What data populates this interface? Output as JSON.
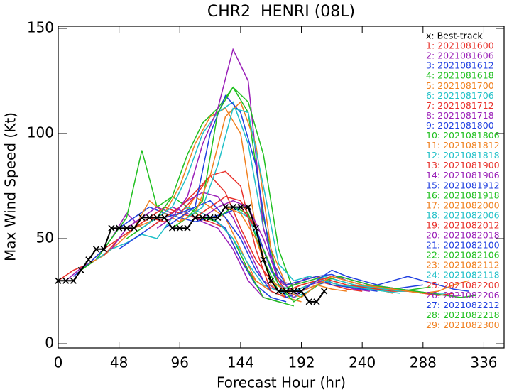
{
  "chart_data": {
    "type": "line",
    "title": "CHR2  HENRI (08L)",
    "x_label": "Forecast Hour (hr)",
    "y_label": "Max Wind Speed (Kt)",
    "xlim": [
      0,
      352
    ],
    "xticks": [
      0,
      48,
      96,
      144,
      192,
      240,
      288,
      336
    ],
    "ylim": [
      -2,
      151
    ],
    "yticks": [
      0,
      50,
      100,
      150
    ],
    "legend": "upper right",
    "series": [
      {
        "name": "x: Best-track",
        "color": "#000000",
        "marker": "x",
        "x": [
          0,
          6,
          12,
          18,
          24,
          30,
          36,
          42,
          48,
          54,
          60,
          66,
          72,
          78,
          84,
          90,
          96,
          102,
          108,
          114,
          120,
          126,
          132,
          138,
          144,
          150,
          156,
          162,
          168,
          174,
          180,
          186,
          192,
          198,
          204,
          210
        ],
        "values": [
          30,
          30,
          30,
          35,
          40,
          45,
          45,
          55,
          55,
          55,
          55,
          60,
          60,
          60,
          60,
          55,
          55,
          55,
          60,
          60,
          60,
          60,
          65,
          65,
          65,
          65,
          55,
          40,
          30,
          25,
          25,
          25,
          25,
          20,
          20,
          25
        ]
      },
      {
        "name": "1: 2021081600",
        "color": "#e8302a",
        "x": [
          0,
          12,
          24,
          36,
          48,
          60,
          72,
          84,
          96,
          108,
          120,
          132,
          144,
          156,
          168
        ],
        "values": [
          30,
          35,
          38,
          45,
          50,
          55,
          60,
          58,
          62,
          60,
          58,
          55,
          40,
          30,
          25
        ]
      },
      {
        "name": "2: 2021081606",
        "color": "#9a1fb8",
        "x": [
          6,
          18,
          30,
          42,
          54,
          66,
          78,
          90,
          102,
          114,
          126,
          138,
          150,
          162,
          174
        ],
        "values": [
          30,
          36,
          40,
          50,
          62,
          55,
          60,
          65,
          62,
          58,
          55,
          45,
          30,
          22,
          20
        ]
      },
      {
        "name": "3: 2021081612",
        "color": "#2040e0",
        "x": [
          12,
          24,
          36,
          48,
          60,
          72,
          84,
          96,
          108,
          120,
          132,
          144,
          156,
          168,
          180
        ],
        "values": [
          32,
          38,
          45,
          55,
          60,
          65,
          62,
          60,
          58,
          60,
          55,
          40,
          28,
          22,
          20
        ]
      },
      {
        "name": "4: 2021081618",
        "color": "#20c020",
        "x": [
          18,
          30,
          42,
          54,
          66,
          78,
          90,
          102,
          114,
          126,
          138,
          150,
          162,
          174,
          186
        ],
        "values": [
          35,
          40,
          50,
          60,
          92,
          65,
          70,
          65,
          60,
          58,
          50,
          35,
          22,
          20,
          18
        ]
      },
      {
        "name": "5: 2021081700",
        "color": "#f08020",
        "x": [
          24,
          36,
          48,
          60,
          72,
          84,
          96,
          108,
          120,
          132,
          144,
          156,
          168,
          180,
          192
        ],
        "values": [
          38,
          42,
          48,
          55,
          68,
          62,
          58,
          70,
          65,
          60,
          45,
          30,
          25,
          22,
          20
        ]
      },
      {
        "name": "6: 2021081706",
        "color": "#20c0c8",
        "x": [
          30,
          42,
          54,
          66,
          78,
          90,
          102,
          114,
          126,
          138,
          150,
          162,
          174,
          186,
          198
        ],
        "values": [
          40,
          45,
          48,
          52,
          50,
          60,
          65,
          62,
          58,
          50,
          38,
          28,
          25,
          22,
          25
        ]
      },
      {
        "name": "7: 2021081712",
        "color": "#e8302a",
        "x": [
          36,
          48,
          60,
          72,
          84,
          96,
          108,
          120,
          132,
          144,
          156,
          168,
          180,
          192,
          204
        ],
        "values": [
          42,
          50,
          55,
          60,
          65,
          62,
          70,
          80,
          72,
          55,
          40,
          30,
          25,
          28,
          30
        ]
      },
      {
        "name": "8: 2021081718",
        "color": "#9a1fb8",
        "x": [
          42,
          54,
          66,
          78,
          90,
          102,
          114,
          126,
          138,
          150,
          162,
          174,
          186,
          198,
          210
        ],
        "values": [
          45,
          55,
          60,
          65,
          62,
          68,
          72,
          70,
          60,
          45,
          30,
          25,
          28,
          30,
          32
        ]
      },
      {
        "name": "9: 2021081800",
        "color": "#2040e0",
        "x": [
          48,
          60,
          72,
          84,
          96,
          108,
          120,
          132,
          144,
          156,
          168,
          180,
          192,
          204,
          216
        ],
        "values": [
          45,
          50,
          55,
          60,
          62,
          65,
          68,
          60,
          50,
          35,
          25,
          22,
          25,
          28,
          30
        ]
      },
      {
        "name": "10: 2021081806",
        "color": "#20c020",
        "x": [
          54,
          66,
          78,
          90,
          102,
          114,
          126,
          138,
          150,
          162,
          174,
          186,
          198,
          210,
          222
        ],
        "values": [
          50,
          55,
          60,
          70,
          90,
          105,
          112,
          122,
          110,
          60,
          30,
          25,
          28,
          30,
          28
        ]
      },
      {
        "name": "11: 2021081812",
        "color": "#f08020",
        "x": [
          60,
          72,
          84,
          96,
          108,
          120,
          132,
          144,
          156,
          168,
          180,
          192,
          204,
          216,
          228
        ],
        "values": [
          55,
          58,
          62,
          75,
          95,
          108,
          112,
          100,
          55,
          28,
          22,
          25,
          28,
          26,
          25
        ]
      },
      {
        "name": "12: 2021081818",
        "color": "#20c0c8",
        "x": [
          66,
          78,
          90,
          102,
          114,
          126,
          138,
          150,
          162,
          174,
          186,
          198,
          210,
          222,
          234
        ],
        "values": [
          55,
          60,
          65,
          80,
          100,
          110,
          115,
          95,
          55,
          30,
          25,
          28,
          30,
          28,
          26
        ]
      },
      {
        "name": "13: 2021081900",
        "color": "#e8302a",
        "x": [
          72,
          84,
          96,
          108,
          120,
          132,
          144,
          156,
          168,
          180,
          192,
          204,
          216,
          228,
          240
        ],
        "values": [
          55,
          60,
          65,
          72,
          80,
          82,
          75,
          45,
          25,
          22,
          25,
          30,
          28,
          26,
          25
        ]
      },
      {
        "name": "14: 2021081906",
        "color": "#9a1fb8",
        "x": [
          78,
          90,
          102,
          114,
          126,
          138,
          150,
          162,
          174,
          186,
          198,
          210,
          222,
          234,
          246
        ],
        "values": [
          55,
          60,
          70,
          95,
          112,
          140,
          125,
          55,
          30,
          28,
          32,
          30,
          28,
          26,
          25
        ]
      },
      {
        "name": "15: 2021081912",
        "color": "#2040e0",
        "x": [
          84,
          96,
          108,
          120,
          132,
          144,
          156,
          168,
          180,
          192,
          204,
          216,
          228,
          240,
          252
        ],
        "values": [
          55,
          60,
          65,
          100,
          118,
          110,
          85,
          40,
          28,
          30,
          32,
          28,
          27,
          26,
          25
        ]
      },
      {
        "name": "16: 2021081918",
        "color": "#20c020",
        "x": [
          90,
          102,
          114,
          126,
          138,
          150,
          162,
          174,
          186,
          198,
          210,
          222,
          234,
          246,
          258
        ],
        "values": [
          55,
          60,
          68,
          110,
          122,
          115,
          90,
          45,
          25,
          28,
          30,
          28,
          27,
          26,
          25
        ]
      },
      {
        "name": "17: 2021082000",
        "color": "#f08020",
        "x": [
          96,
          108,
          120,
          132,
          144,
          156,
          168,
          180,
          192,
          204,
          216,
          228,
          240,
          252,
          264
        ],
        "values": [
          58,
          62,
          80,
          108,
          115,
          95,
          45,
          28,
          30,
          32,
          30,
          28,
          27,
          26,
          24
        ]
      },
      {
        "name": "18: 2021082006",
        "color": "#20c0c8",
        "x": [
          102,
          114,
          126,
          138,
          150,
          162,
          174,
          186,
          198,
          210,
          222,
          234,
          246,
          258,
          270
        ],
        "values": [
          60,
          65,
          85,
          112,
          110,
          75,
          38,
          30,
          32,
          30,
          28,
          27,
          26,
          25,
          24
        ]
      },
      {
        "name": "19: 2021082012",
        "color": "#e8302a",
        "x": [
          108,
          120,
          132,
          144,
          156,
          168,
          180,
          192,
          204,
          216,
          228,
          240,
          252,
          264,
          276
        ],
        "values": [
          60,
          65,
          70,
          68,
          55,
          35,
          28,
          30,
          32,
          30,
          28,
          27,
          26,
          25,
          25
        ]
      },
      {
        "name": "20: 2021082018",
        "color": "#9a1fb8",
        "x": [
          114,
          126,
          138,
          150,
          162,
          174,
          186,
          198,
          210,
          222,
          234,
          246,
          258,
          270,
          282
        ],
        "values": [
          60,
          65,
          68,
          65,
          50,
          30,
          25,
          28,
          30,
          32,
          30,
          28,
          27,
          26,
          25
        ]
      },
      {
        "name": "21: 2021082100",
        "color": "#2040e0",
        "x": [
          120,
          132,
          144,
          156,
          168,
          180,
          192,
          204,
          216,
          228,
          240,
          252,
          264,
          276,
          288
        ],
        "values": [
          60,
          62,
          65,
          55,
          35,
          28,
          30,
          32,
          33,
          30,
          28,
          27,
          26,
          27,
          28
        ]
      },
      {
        "name": "22: 2021082106",
        "color": "#20c020",
        "x": [
          126,
          138,
          150,
          162,
          174,
          186,
          198,
          210,
          222,
          234,
          246,
          258,
          270,
          282,
          294
        ],
        "values": [
          60,
          65,
          62,
          40,
          25,
          28,
          30,
          32,
          30,
          28,
          27,
          26,
          25,
          26,
          27
        ]
      },
      {
        "name": "23: 2021082112",
        "color": "#f08020",
        "x": [
          132,
          144,
          156,
          168,
          180,
          192,
          204,
          216,
          228,
          240,
          252,
          264,
          276,
          288,
          300
        ],
        "values": [
          65,
          62,
          50,
          30,
          25,
          28,
          30,
          32,
          30,
          28,
          27,
          26,
          25,
          24,
          25
        ]
      },
      {
        "name": "24: 2021082118",
        "color": "#20c0c8",
        "x": [
          138,
          150,
          162,
          174,
          186,
          198,
          210,
          222,
          234,
          246,
          258,
          270,
          282,
          294,
          306
        ],
        "values": [
          65,
          60,
          45,
          28,
          25,
          28,
          32,
          30,
          28,
          27,
          26,
          25,
          25,
          24,
          24
        ]
      },
      {
        "name": "25: 2021082200",
        "color": "#e8302a",
        "x": [
          144,
          156,
          168,
          180,
          192,
          204,
          216,
          228,
          240,
          252,
          264,
          276,
          288,
          300,
          312
        ],
        "values": [
          65,
          55,
          35,
          25,
          28,
          30,
          32,
          30,
          28,
          27,
          26,
          25,
          24,
          23,
          24
        ]
      },
      {
        "name": "26: 2021082206",
        "color": "#9a1fb8",
        "x": [
          150,
          162,
          174,
          186,
          198,
          210,
          222,
          234,
          246,
          258,
          270,
          282,
          294,
          306,
          318
        ],
        "values": [
          65,
          45,
          28,
          22,
          28,
          30,
          32,
          30,
          28,
          27,
          26,
          25,
          24,
          23,
          23
        ]
      },
      {
        "name": "27: 2021082212",
        "color": "#2040e0",
        "x": [
          156,
          168,
          180,
          192,
          204,
          216,
          228,
          240,
          252,
          264,
          276,
          288,
          300,
          312,
          324
        ],
        "values": [
          55,
          35,
          22,
          25,
          30,
          35,
          32,
          30,
          28,
          30,
          32,
          30,
          28,
          26,
          25
        ]
      },
      {
        "name": "28: 2021082218",
        "color": "#20c020",
        "x": [
          162,
          174,
          186,
          198,
          210,
          222,
          234,
          246,
          258,
          270,
          282,
          294,
          306,
          318,
          330
        ],
        "values": [
          45,
          28,
          20,
          25,
          30,
          32,
          30,
          28,
          27,
          26,
          25,
          24,
          23,
          22,
          23
        ]
      },
      {
        "name": "29: 2021082300",
        "color": "#f08020",
        "x": [
          168,
          180,
          192,
          204,
          216,
          228,
          240,
          252,
          264,
          276,
          288,
          300,
          312,
          324
        ],
        "values": [
          30,
          25,
          22,
          28,
          32,
          30,
          28,
          27,
          26,
          25,
          24,
          25,
          28,
          30
        ]
      }
    ]
  }
}
